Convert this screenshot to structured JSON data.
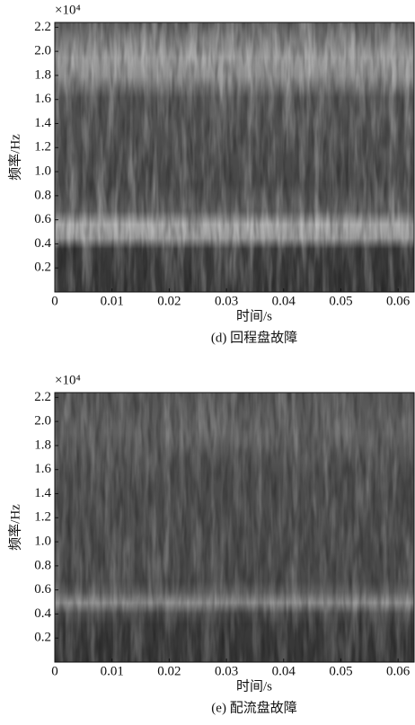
{
  "chart_data": [
    {
      "type": "heatmap",
      "title": "(d) 回程盘故障",
      "xlabel": "时间/s",
      "ylabel": "频率/Hz",
      "y_multiplier": "×10⁴",
      "xlim": [
        0,
        0.0628
      ],
      "xticks": [
        0,
        0.01,
        0.02,
        0.03,
        0.04,
        0.05,
        0.06
      ],
      "ylim": [
        0,
        2.24
      ],
      "yticks": [
        0.2,
        0.4,
        0.6,
        0.8,
        {
          "value": 1,
          "label": "1.0"
        },
        1.2,
        1.4,
        1.6,
        1.8,
        {
          "value": 2,
          "label": "2.0"
        },
        2.2
      ]
    },
    {
      "type": "heatmap",
      "title": "(e) 配流盘故障",
      "xlabel": "时间/s",
      "ylabel": "频率/Hz",
      "y_multiplier": "×10⁴",
      "xlim": [
        0,
        0.0628
      ],
      "xticks": [
        0,
        0.01,
        0.02,
        0.03,
        0.04,
        0.05,
        0.06
      ],
      "ylim": [
        0,
        2.24
      ],
      "yticks": [
        0.2,
        0.4,
        0.6,
        0.8,
        {
          "value": 1,
          "label": "1.0"
        },
        1.2,
        1.4,
        1.6,
        1.8,
        {
          "value": 2,
          "label": "2.0"
        },
        2.2
      ]
    }
  ]
}
